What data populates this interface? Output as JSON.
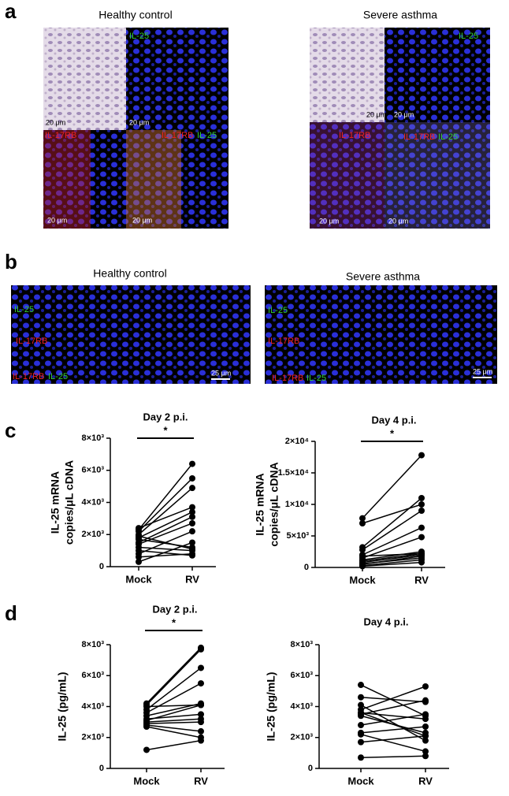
{
  "panel_labels": [
    "a",
    "b",
    "c",
    "d"
  ],
  "panel_a": {
    "titles": [
      "Healthy control",
      "Severe asthma"
    ],
    "green": "IL-25",
    "red": "IL-17RB",
    "scale": "20 μm"
  },
  "panel_b": {
    "titles": [
      "Healthy control",
      "Severe asthma"
    ],
    "green": "IL-25",
    "red": "IL-17RB",
    "scale": "25 μm"
  },
  "chart_data": [
    {
      "type": "paired",
      "title": "Day 2 p.i.",
      "ylabel": [
        "IL-25 mRNA",
        "copies/μL cDNA"
      ],
      "categories": [
        "Mock",
        "RV"
      ],
      "significance": "*",
      "values": [
        [
          2400,
          3700
        ],
        [
          2300,
          6400
        ],
        [
          2200,
          5500
        ],
        [
          2000,
          4900
        ],
        [
          1900,
          1100
        ],
        [
          1800,
          3400
        ],
        [
          1700,
          1200
        ],
        [
          1500,
          3100
        ],
        [
          1400,
          2700
        ],
        [
          1200,
          1000
        ],
        [
          800,
          2200
        ],
        [
          600,
          800
        ],
        [
          300,
          1500
        ],
        [
          1000,
          700
        ]
      ],
      "ylim": [
        0,
        8000
      ],
      "yticks": [
        0,
        {
          "value": 2000,
          "label": "2×10³"
        },
        {
          "value": 4000,
          "label": "4×10³"
        },
        {
          "value": 6000,
          "label": "6×10³"
        },
        {
          "value": 8000,
          "label": "8×10³"
        }
      ]
    },
    {
      "type": "paired",
      "title": "Day 4 p.i.",
      "ylabel": [
        "IL-25 mRNA",
        "copies/μL cDNA"
      ],
      "categories": [
        "Mock",
        "RV"
      ],
      "significance": "*",
      "values": [
        [
          7800,
          17800
        ],
        [
          7000,
          10000
        ],
        [
          3200,
          11000
        ],
        [
          2800,
          9000
        ],
        [
          2000,
          6300
        ],
        [
          1500,
          4800
        ],
        [
          1200,
          2500
        ],
        [
          1000,
          2200
        ],
        [
          800,
          2000
        ],
        [
          500,
          1800
        ],
        [
          300,
          1200
        ],
        [
          200,
          800
        ],
        [
          1800,
          2200
        ],
        [
          600,
          1500
        ]
      ],
      "ylim": [
        0,
        20000
      ],
      "yticks": [
        0,
        {
          "value": 5000,
          "label": "5×10³"
        },
        {
          "value": 10000,
          "label": "1×10⁴"
        },
        {
          "value": 15000,
          "label": "1.5×10⁴"
        },
        {
          "value": 20000,
          "label": "2×10⁴"
        }
      ]
    },
    {
      "type": "paired",
      "title": "Day 2 p.i.",
      "ylabel": [
        "IL-25 (pg/mL)"
      ],
      "categories": [
        "Mock",
        "RV"
      ],
      "significance": "*",
      "values": [
        [
          4200,
          7800
        ],
        [
          4100,
          7700
        ],
        [
          4000,
          4100
        ],
        [
          3800,
          6500
        ],
        [
          3600,
          5500
        ],
        [
          3400,
          4200
        ],
        [
          3200,
          3500
        ],
        [
          3000,
          3200
        ],
        [
          2900,
          3000
        ],
        [
          2800,
          2400
        ],
        [
          2700,
          2000
        ],
        [
          1200,
          1800
        ],
        [
          3100,
          4100
        ]
      ],
      "ylim": [
        0,
        8000
      ],
      "yticks": [
        0,
        {
          "value": 2000,
          "label": "2×10³"
        },
        {
          "value": 4000,
          "label": "4×10³"
        },
        {
          "value": 6000,
          "label": "6×10³"
        },
        {
          "value": 8000,
          "label": "8×10³"
        }
      ]
    },
    {
      "type": "paired",
      "title": "Day 4 p.i.",
      "ylabel": [
        "IL-25 (pg/mL)"
      ],
      "categories": [
        "Mock",
        "RV"
      ],
      "values": [
        [
          5400,
          3400
        ],
        [
          4600,
          4300
        ],
        [
          4100,
          1800
        ],
        [
          3800,
          5300
        ],
        [
          3600,
          3200
        ],
        [
          3500,
          4400
        ],
        [
          3400,
          2300
        ],
        [
          2800,
          3500
        ],
        [
          2300,
          2700
        ],
        [
          2200,
          1100
        ],
        [
          1700,
          2100
        ],
        [
          700,
          800
        ],
        [
          3600,
          2100
        ]
      ],
      "ylim": [
        0,
        8000
      ],
      "yticks": [
        0,
        {
          "value": 2000,
          "label": "2×10³"
        },
        {
          "value": 4000,
          "label": "4×10³"
        },
        {
          "value": 6000,
          "label": "6×10³"
        },
        {
          "value": 8000,
          "label": "8×10³"
        }
      ]
    }
  ]
}
